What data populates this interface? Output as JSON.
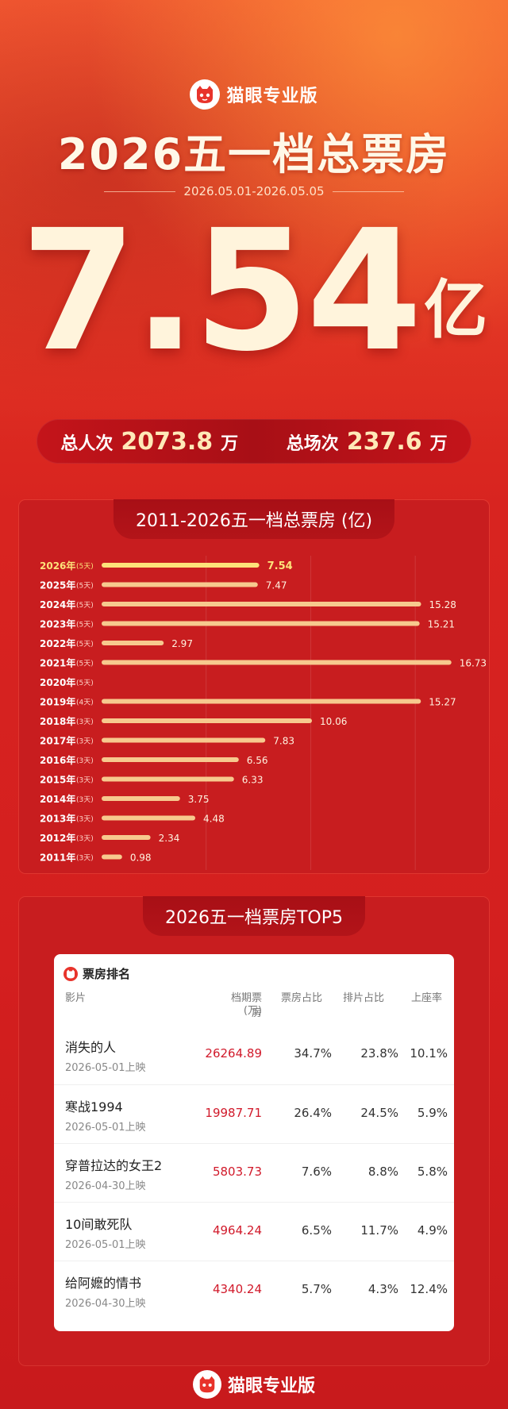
{
  "brand": {
    "name": "猫眼专业版",
    "logo_icon": "cat-face-icon"
  },
  "header": {
    "title": "2026五一档总票房",
    "date_range": "2026.05.01-2026.05.05",
    "total_value": "7.54",
    "total_unit": "亿"
  },
  "stats": {
    "admissions_label": "总人次",
    "admissions_value": "2073.8",
    "admissions_unit": "万",
    "screenings_label": "总场次",
    "screenings_value": "237.6",
    "screenings_unit": "万"
  },
  "history": {
    "title": "2011-2026五一档总票房 (亿)"
  },
  "chart_data": {
    "type": "bar",
    "title": "2011-2026五一档总票房 (亿)",
    "orientation": "horizontal",
    "categories": [
      "2026年",
      "2025年",
      "2024年",
      "2023年",
      "2022年",
      "2021年",
      "2020年",
      "2019年",
      "2018年",
      "2017年",
      "2016年",
      "2015年",
      "2014年",
      "2013年",
      "2012年",
      "2011年"
    ],
    "day_labels": [
      "(5天)",
      "(5天)",
      "(5天)",
      "(5天)",
      "(5天)",
      "(5天)",
      "(5天)",
      "(4天)",
      "(3天)",
      "(3天)",
      "(3天)",
      "(3天)",
      "(3天)",
      "(3天)",
      "(3天)",
      "(3天)"
    ],
    "values": [
      7.54,
      7.47,
      15.28,
      15.21,
      2.97,
      16.73,
      null,
      15.27,
      10.06,
      7.83,
      6.56,
      6.33,
      3.75,
      4.48,
      2.34,
      0.98
    ],
    "value_labels": [
      "7.54",
      "7.47",
      "15.28",
      "15.21",
      "2.97",
      "16.73",
      "",
      "15.27",
      "10.06",
      "7.83",
      "6.56",
      "6.33",
      "3.75",
      "4.48",
      "2.34",
      "0.98"
    ],
    "xlim": [
      0,
      17.5
    ],
    "grid": true,
    "highlight_index": 0,
    "colors": {
      "bar": "#f7c98e",
      "highlight": "#fde27a",
      "label": "#fff3e0"
    }
  },
  "top5": {
    "section_title": "2026五一档票房TOP5",
    "card_title": "票房排名",
    "columns": [
      "影片",
      "档期票房",
      "(万)",
      "票房占比",
      "排片占比",
      "上座率"
    ],
    "rows": [
      {
        "film": "消失的人",
        "release": "2026-05-01上映",
        "box": "26264.89",
        "share": "34.7%",
        "screen": "23.8%",
        "occupancy": "10.1%"
      },
      {
        "film": "寒战1994",
        "release": "2026-05-01上映",
        "box": "19987.71",
        "share": "26.4%",
        "screen": "24.5%",
        "occupancy": "5.9%"
      },
      {
        "film": "穿普拉达的女王2",
        "release": "2026-04-30上映",
        "box": "5803.73",
        "share": "7.6%",
        "screen": "8.8%",
        "occupancy": "5.8%"
      },
      {
        "film": "10间敢死队",
        "release": "2026-05-01上映",
        "box": "4964.24",
        "share": "6.5%",
        "screen": "11.7%",
        "occupancy": "4.9%"
      },
      {
        "film": "给阿嬷的情书",
        "release": "2026-04-30上映",
        "box": "4340.24",
        "share": "5.7%",
        "screen": "4.3%",
        "occupancy": "12.4%"
      }
    ]
  },
  "footer": {
    "name": "猫眼专业版"
  }
}
